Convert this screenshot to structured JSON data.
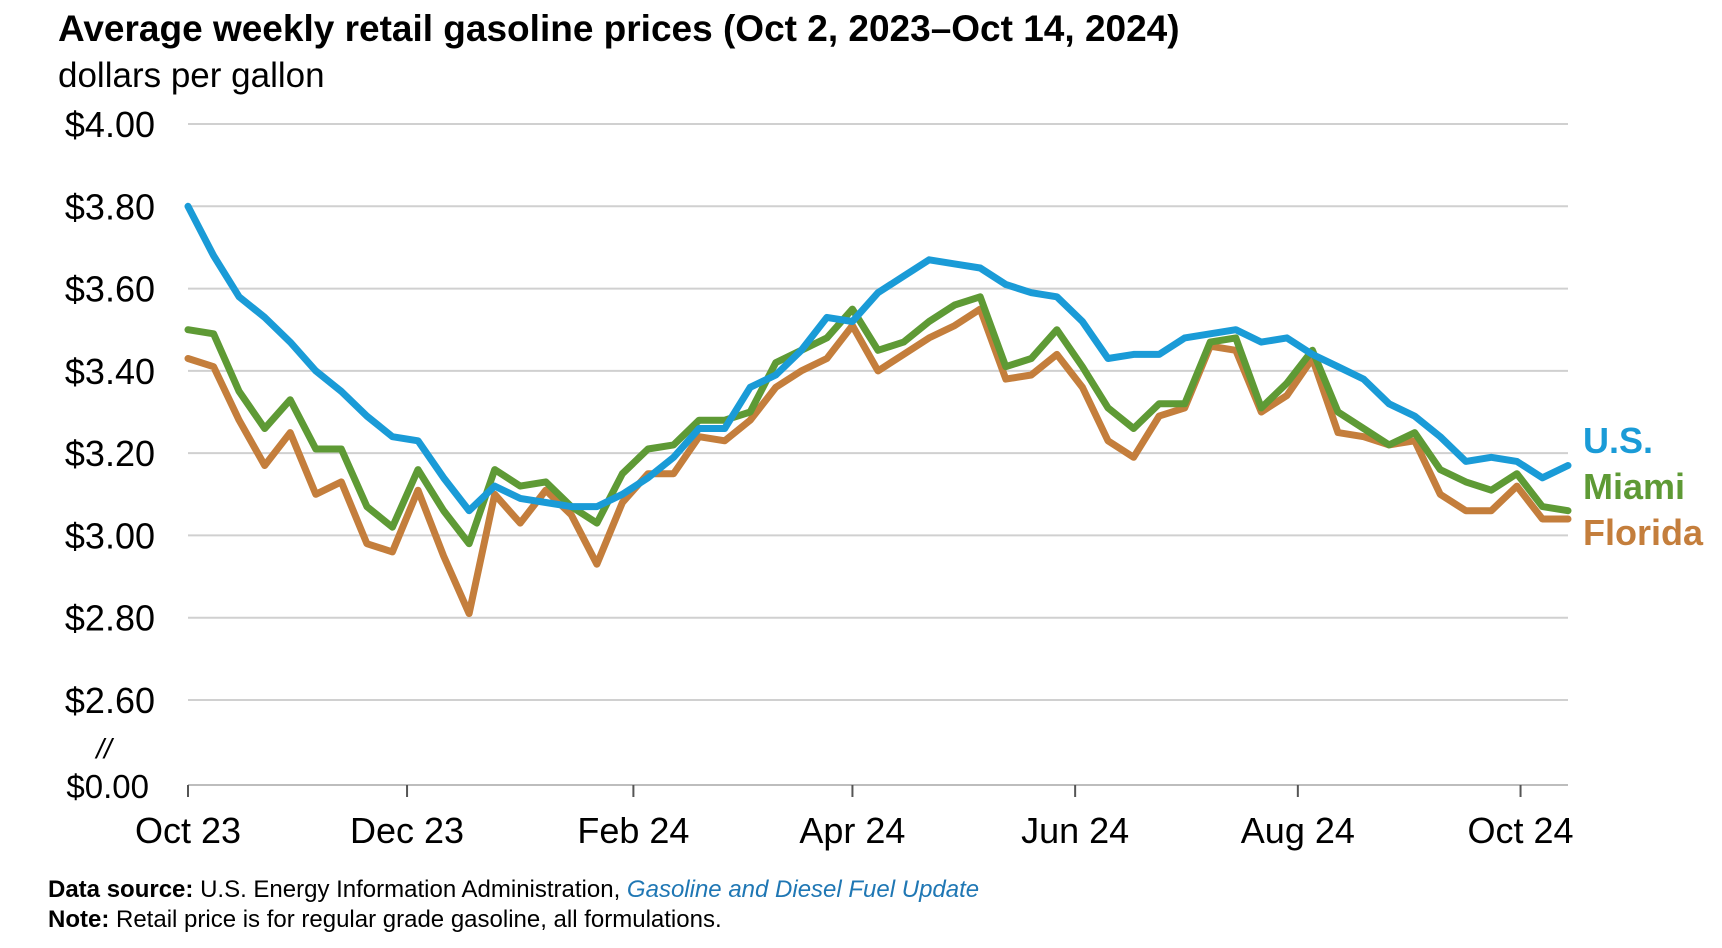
{
  "title": "Average weekly retail gasoline prices (Oct 2, 2023–Oct 14, 2024)",
  "subtitle": "dollars per gallon",
  "footer": {
    "source_label": "Data source:",
    "source_text": "U.S. Energy Information Administration,",
    "source_link": "Gasoline and Diesel Fuel Update",
    "note_label": "Note:",
    "note_text": "Retail price is for regular grade gasoline, all formulations."
  },
  "chart_data": {
    "type": "line",
    "title": "Average weekly retail gasoline prices (Oct 2, 2023–Oct 14, 2024)",
    "ylabel": "dollars per gallon",
    "ylim": [
      2.6,
      4.0
    ],
    "y_axis_break": {
      "symbol": "//",
      "bottom_label": "$0.00"
    },
    "yticks": [
      {
        "value": 4.0,
        "label": "$4.00"
      },
      {
        "value": 3.8,
        "label": "$3.80"
      },
      {
        "value": 3.6,
        "label": "$3.60"
      },
      {
        "value": 3.4,
        "label": "$3.40"
      },
      {
        "value": 3.2,
        "label": "$3.20"
      },
      {
        "value": 3.0,
        "label": "$3.00"
      },
      {
        "value": 2.8,
        "label": "$2.80"
      },
      {
        "value": 2.6,
        "label": "$2.60"
      }
    ],
    "x_start": "2023-10-02",
    "x_end": "2024-10-14",
    "xticks": [
      {
        "date": "2023-10-01",
        "label": "Oct 23"
      },
      {
        "date": "2023-12-01",
        "label": "Dec 23"
      },
      {
        "date": "2024-02-01",
        "label": "Feb 24"
      },
      {
        "date": "2024-04-01",
        "label": "Apr 24"
      },
      {
        "date": "2024-06-01",
        "label": "Jun 24"
      },
      {
        "date": "2024-08-01",
        "label": "Aug 24"
      },
      {
        "date": "2024-10-01",
        "label": "Oct 24"
      }
    ],
    "grid": true,
    "legend": "right, labels at line ends",
    "series": [
      {
        "name": "Florida",
        "color": "#c47e3c",
        "values": [
          3.43,
          3.41,
          3.28,
          3.17,
          3.25,
          3.1,
          3.13,
          2.98,
          2.96,
          3.11,
          2.95,
          2.81,
          3.1,
          3.03,
          3.11,
          3.05,
          2.93,
          3.08,
          3.15,
          3.15,
          3.24,
          3.23,
          3.28,
          3.36,
          3.4,
          3.43,
          3.51,
          3.4,
          3.44,
          3.48,
          3.51,
          3.55,
          3.38,
          3.39,
          3.44,
          3.36,
          3.23,
          3.19,
          3.29,
          3.31,
          3.46,
          3.45,
          3.3,
          3.34,
          3.43,
          3.25,
          3.24,
          3.22,
          3.23,
          3.1,
          3.06,
          3.06,
          3.12,
          3.04,
          3.04
        ]
      },
      {
        "name": "Miami",
        "color": "#5e9a35",
        "values": [
          3.5,
          3.49,
          3.35,
          3.26,
          3.33,
          3.21,
          3.21,
          3.07,
          3.02,
          3.16,
          3.06,
          2.98,
          3.16,
          3.12,
          3.13,
          3.07,
          3.03,
          3.15,
          3.21,
          3.22,
          3.28,
          3.28,
          3.3,
          3.42,
          3.45,
          3.48,
          3.55,
          3.45,
          3.47,
          3.52,
          3.56,
          3.58,
          3.41,
          3.43,
          3.5,
          3.41,
          3.31,
          3.26,
          3.32,
          3.32,
          3.47,
          3.48,
          3.31,
          3.37,
          3.45,
          3.3,
          3.26,
          3.22,
          3.25,
          3.16,
          3.13,
          3.11,
          3.15,
          3.07,
          3.06
        ]
      },
      {
        "name": "U.S.",
        "color": "#1a9bd7",
        "values": [
          3.8,
          3.68,
          3.58,
          3.53,
          3.47,
          3.4,
          3.35,
          3.29,
          3.24,
          3.23,
          3.14,
          3.06,
          3.12,
          3.09,
          3.08,
          3.07,
          3.07,
          3.1,
          3.14,
          3.19,
          3.26,
          3.26,
          3.36,
          3.39,
          3.45,
          3.53,
          3.52,
          3.59,
          3.63,
          3.67,
          3.66,
          3.65,
          3.61,
          3.59,
          3.58,
          3.52,
          3.43,
          3.44,
          3.44,
          3.48,
          3.49,
          3.5,
          3.47,
          3.48,
          3.44,
          3.41,
          3.38,
          3.32,
          3.29,
          3.24,
          3.18,
          3.19,
          3.18,
          3.14,
          3.17
        ]
      }
    ]
  }
}
